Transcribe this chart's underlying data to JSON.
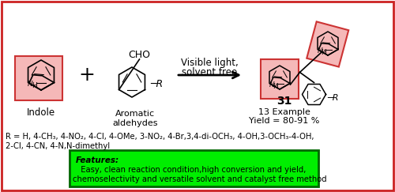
{
  "bg_color": "#ffffff",
  "border_color": "#cc2222",
  "indole_box_color": "#f5b8b8",
  "product_box_color": "#f5b8b8",
  "features_bg": "#00ee00",
  "features_border": "#006600",
  "r_line1": "R = H, 4-CH₃, 4-NO₂, 4-Cl, 4-OMe, 3-NO₂, 4-Br,3,4-di-OCH₃, 4-OH,3-OCH₃-4-OH,",
  "r_line2": "2-Cl, 4-CN, 4-N,N-dimethyl",
  "features_bold": "Features:",
  "features_line1": "  Easy, clean reaction condition,high conversion and yield,",
  "features_line2": "chemoselectivity and versatile solvent and catalyst free method",
  "condition_line1": "Visible light,",
  "condition_line2": "solvent free",
  "label_indole": "Indole",
  "label_aldehyde": "Aromatic\naldehydes",
  "label_product": "31",
  "label_example": "13 Example",
  "label_yield": "Yield = 80-91 %"
}
